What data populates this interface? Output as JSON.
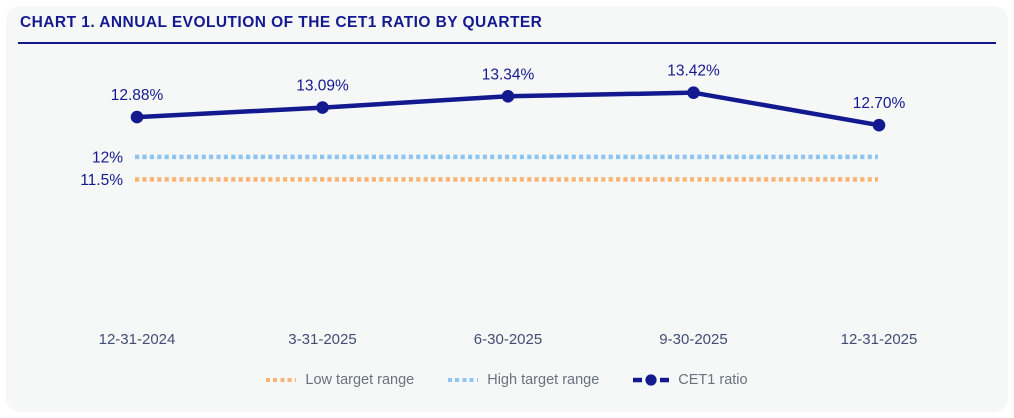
{
  "title": "CHART 1. ANNUAL EVOLUTION OF THE CET1 RATIO BY QUARTER",
  "colors": {
    "navy": "#131a8f",
    "light_blue": "#8dc6f2",
    "orange": "#f8b573",
    "card_bg": "#f6f7f7",
    "axis_text": "#424d72",
    "legend_text": "#6a7280",
    "page_bg": "#ffffff"
  },
  "chart_data": {
    "type": "line",
    "x": [
      "12-31-2024",
      "3-31-2025",
      "6-30-2025",
      "9-30-2025",
      "12-31-2025"
    ],
    "series": [
      {
        "name": "CET1 ratio",
        "values": [
          12.88,
          13.09,
          13.34,
          13.42,
          12.7
        ],
        "labels": [
          "12.88%",
          "13.09%",
          "13.34%",
          "13.42%",
          "12.70%"
        ],
        "color": "#131a8f",
        "style": "solid-line-with-round-markers"
      }
    ],
    "reference_lines": [
      {
        "name": "High target range",
        "value": 12.0,
        "label": "12%",
        "color": "#8dc6f2",
        "style": "dotted"
      },
      {
        "name": "Low target range",
        "value": 11.5,
        "label": "11.5%",
        "color": "#f8b573",
        "style": "dotted"
      }
    ],
    "ylim": [
      11.0,
      13.9
    ],
    "grid": false,
    "legend_position": "bottom-center",
    "legend": [
      {
        "label": "Low target range",
        "swatch": "dotted",
        "color": "#f8b573"
      },
      {
        "label": "High target range",
        "swatch": "dotted",
        "color": "#8dc6f2"
      },
      {
        "label": "CET1 ratio",
        "swatch": "dash-dot-dash",
        "color": "#131a8f"
      }
    ]
  }
}
